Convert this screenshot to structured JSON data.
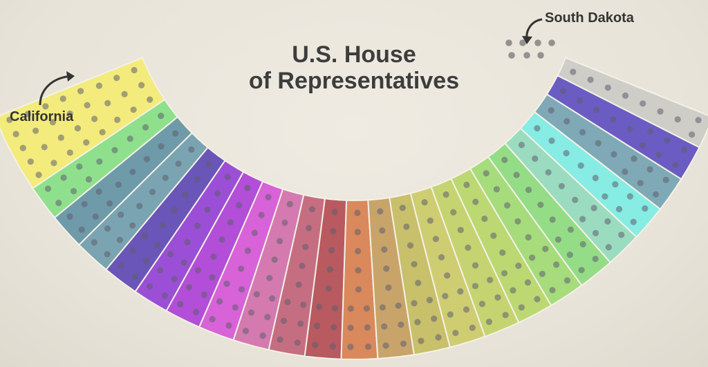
{
  "title": {
    "line1": "U.S. House",
    "line2": "of Representatives"
  },
  "callouts": {
    "california": "California",
    "south_dakota": "South Dakota"
  },
  "colors": {
    "background": "#eae6db",
    "title_text": "#3d3d3d",
    "region_border": "#f4f1e6",
    "seat_dot": "#5e5e6e",
    "arrow": "#333333"
  },
  "states": [
    {
      "id": "california",
      "color": "#f3eb7c"
    },
    {
      "id": "green-1",
      "color": "#8fe08c"
    },
    {
      "id": "steelblue-1",
      "color": "#6f9aa9"
    },
    {
      "id": "steelblue-2",
      "color": "#7aa4b1"
    },
    {
      "id": "indigo",
      "color": "#6a55b8"
    },
    {
      "id": "violet",
      "color": "#9b4fd6"
    },
    {
      "id": "purple-1",
      "color": "#b24ed8"
    },
    {
      "id": "magenta",
      "color": "#d862d8"
    },
    {
      "id": "pink",
      "color": "#d47ab0"
    },
    {
      "id": "rose",
      "color": "#c56e82"
    },
    {
      "id": "red",
      "color": "#b85a5f"
    },
    {
      "id": "orange",
      "color": "#d9895c"
    },
    {
      "id": "tan",
      "color": "#c9a46a"
    },
    {
      "id": "olive-1",
      "color": "#c8c06a"
    },
    {
      "id": "olive-2",
      "color": "#cfcd72"
    },
    {
      "id": "yellowgreen-1",
      "color": "#c5d470"
    },
    {
      "id": "yellowgreen-2",
      "color": "#bcd872"
    },
    {
      "id": "lightgreen-1",
      "color": "#a6dc7c"
    },
    {
      "id": "green-2",
      "color": "#94dd86"
    },
    {
      "id": "seafoam",
      "color": "#9bdcc0"
    },
    {
      "id": "cyan",
      "color": "#86ece4"
    },
    {
      "id": "steelblue-3",
      "color": "#7fa9b6"
    },
    {
      "id": "blue-violet",
      "color": "#6b5cc4"
    },
    {
      "id": "grey",
      "color": "#cfcdc8"
    }
  ]
}
